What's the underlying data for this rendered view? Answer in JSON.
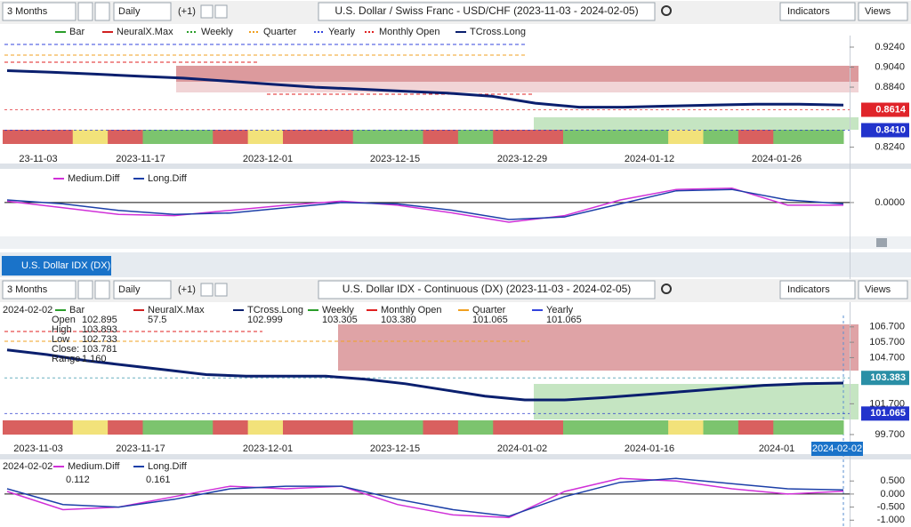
{
  "top_chart": {
    "toolbar": {
      "period": "3 Months",
      "interval": "Daily",
      "offset": "(+1)",
      "title": "U.S. Dollar / Swiss Franc - USD/CHF (2023-11-03 - 2024-02-05)",
      "indicators": "Indicators",
      "views": "Views"
    },
    "legend": [
      "Bar",
      "NeuralX.Max",
      "Weekly",
      "Quarter",
      "Yearly",
      "Monthly Open",
      "TCross.Long"
    ],
    "xticks": [
      "23-11-03",
      "2023-11-17",
      "2023-12-01",
      "2023-12-15",
      "2023-12-29",
      "2024-01-12",
      "2024-01-26"
    ],
    "ylim": [
      0.813,
      0.932
    ],
    "yticks": [
      {
        "value": 0.924,
        "label": "0.9240"
      },
      {
        "value": 0.904,
        "label": "0.9040"
      },
      {
        "value": 0.884,
        "label": "0.8840"
      },
      {
        "value": 0.824,
        "label": "0.8240"
      }
    ],
    "price_tags": [
      {
        "value": 0.8614,
        "label": "0.8614",
        "color": "#e0242a"
      },
      {
        "value": 0.841,
        "label": "0.8410",
        "color": "#2233cc"
      }
    ],
    "tcross_long": {
      "color": "#0a1f6e",
      "values": [
        0.9005,
        0.899,
        0.897,
        0.895,
        0.893,
        0.89,
        0.887,
        0.884,
        0.882,
        0.88,
        0.878,
        0.875,
        0.868,
        0.864,
        0.864,
        0.865,
        0.866,
        0.867,
        0.867,
        0.866
      ]
    },
    "diff": {
      "legend": [
        "Medium.Diff",
        "Long.Diff"
      ],
      "ylim": [
        -1.26,
        1.22
      ],
      "yticks": [
        {
          "value": 0,
          "label": "0.0000"
        }
      ],
      "medium": {
        "color": "#d030d8",
        "values": [
          0.05,
          -0.2,
          -0.45,
          -0.5,
          -0.3,
          -0.1,
          0.05,
          -0.1,
          -0.4,
          -0.75,
          -0.5,
          0.1,
          0.5,
          0.55,
          -0.1,
          -0.1
        ]
      },
      "long": {
        "color": "#1c3fa8",
        "values": [
          0.1,
          -0.05,
          -0.3,
          -0.45,
          -0.4,
          -0.2,
          0.0,
          -0.05,
          -0.3,
          -0.65,
          -0.55,
          -0.05,
          0.45,
          0.5,
          0.1,
          -0.05
        ]
      }
    }
  },
  "tab": "U.S. Dollar IDX (DX)",
  "bottom_chart": {
    "toolbar": {
      "period": "3 Months",
      "interval": "Daily",
      "offset": "(+1)",
      "title": "U.S. Dollar IDX - Continuous (DX) (2023-11-03 - 2024-02-05)",
      "indicators": "Indicators",
      "views": "Views"
    },
    "legend_date": "2024-02-02",
    "legend": [
      {
        "name": "Bar"
      },
      {
        "name": "NeuralX.Max",
        "value": "57.5"
      },
      {
        "name": "TCross.Long",
        "value": "102.999"
      },
      {
        "name": "Weekly",
        "value": "103.305"
      },
      {
        "name": "Monthly Open",
        "value": "103.380"
      },
      {
        "name": "Quarter",
        "value": "101.065"
      },
      {
        "name": "Yearly",
        "value": "101.065"
      }
    ],
    "ohlc": [
      {
        "label": "Open",
        "value": "102.895"
      },
      {
        "label": "High",
        "value": "103.893"
      },
      {
        "label": "Low",
        "value": "102.733"
      },
      {
        "label": "Close:",
        "value": "103.781"
      },
      {
        "label": "Range",
        "value": "1.160"
      }
    ],
    "xticks": [
      "2023-11-03",
      "2023-11-17",
      "2023-12-01",
      "2023-12-15",
      "2024-01-02",
      "2024-01-16",
      "2024-01"
    ],
    "cursor_date": "2024-02-02",
    "ylim": [
      99.64,
      107.44
    ],
    "yticks": [
      {
        "value": 106.7,
        "label": "106.700"
      },
      {
        "value": 105.7,
        "label": "105.700"
      },
      {
        "value": 104.7,
        "label": "104.700"
      },
      {
        "value": 101.7,
        "label": "101.700"
      },
      {
        "value": 99.7,
        "label": "99.700"
      }
    ],
    "price_tags": [
      {
        "value": 103.383,
        "label": "103.383",
        "color": "#2a8fa6"
      },
      {
        "value": 101.065,
        "label": "101.065",
        "color": "#2233cc"
      }
    ],
    "tcross_long": {
      "color": "#0a1f6e",
      "values": [
        105.2,
        104.9,
        104.5,
        104.2,
        103.9,
        103.6,
        103.5,
        103.5,
        103.5,
        103.3,
        103.0,
        102.6,
        102.2,
        101.95,
        101.95,
        102.1,
        102.3,
        102.5,
        102.7,
        102.9,
        103.0,
        103.05
      ]
    },
    "diff": {
      "legend_date": "2024-02-02",
      "legend": [
        {
          "name": "Medium.Diff",
          "value": "0.112"
        },
        {
          "name": "Long.Diff",
          "value": "0.161"
        }
      ],
      "ylim": [
        -1.16,
        1.29
      ],
      "yticks": [
        {
          "value": 0.5,
          "label": "0.500"
        },
        {
          "value": 0,
          "label": "0.000"
        },
        {
          "value": -0.5,
          "label": "-0.500"
        },
        {
          "value": -1,
          "label": "-1.000"
        }
      ],
      "medium": {
        "color": "#d030d8",
        "values": [
          0.1,
          -0.6,
          -0.5,
          -0.1,
          0.3,
          0.2,
          0.3,
          -0.4,
          -0.8,
          -0.9,
          0.1,
          0.6,
          0.5,
          0.2,
          0.0,
          0.11
        ]
      },
      "long": {
        "color": "#1c3fa8",
        "values": [
          0.2,
          -0.4,
          -0.5,
          -0.2,
          0.2,
          0.3,
          0.3,
          -0.2,
          -0.6,
          -0.85,
          -0.1,
          0.45,
          0.6,
          0.4,
          0.2,
          0.16
        ]
      }
    }
  }
}
